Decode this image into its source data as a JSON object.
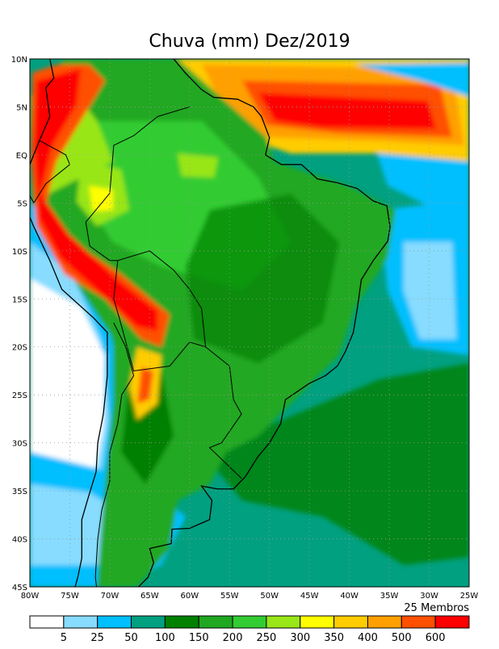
{
  "title": "Chuva (mm) Dez/2019",
  "members_note": "25 Membros",
  "x_axis_labels": [
    "80W",
    "75W",
    "70W",
    "65W",
    "60W",
    "55W",
    "50W",
    "45W",
    "40W",
    "35W",
    "30W",
    "25W"
  ],
  "y_axis_labels": [
    "10N",
    "5N",
    "EQ",
    "5S",
    "10S",
    "15S",
    "20S",
    "25S",
    "30S",
    "35S",
    "40S",
    "45S"
  ],
  "colorbar": {
    "labels": [
      "5",
      "25",
      "50",
      "100",
      "150",
      "200",
      "250",
      "300",
      "350",
      "400",
      "500",
      "600"
    ],
    "colors": [
      "#FFFFFF",
      "#87DCFF",
      "#00BFFF",
      "#00A080",
      "#008000",
      "#20A820",
      "#33CC33",
      "#99E619",
      "#FFFF00",
      "#FFCC00",
      "#FFA000",
      "#FF5000",
      "#FF0000"
    ]
  }
}
